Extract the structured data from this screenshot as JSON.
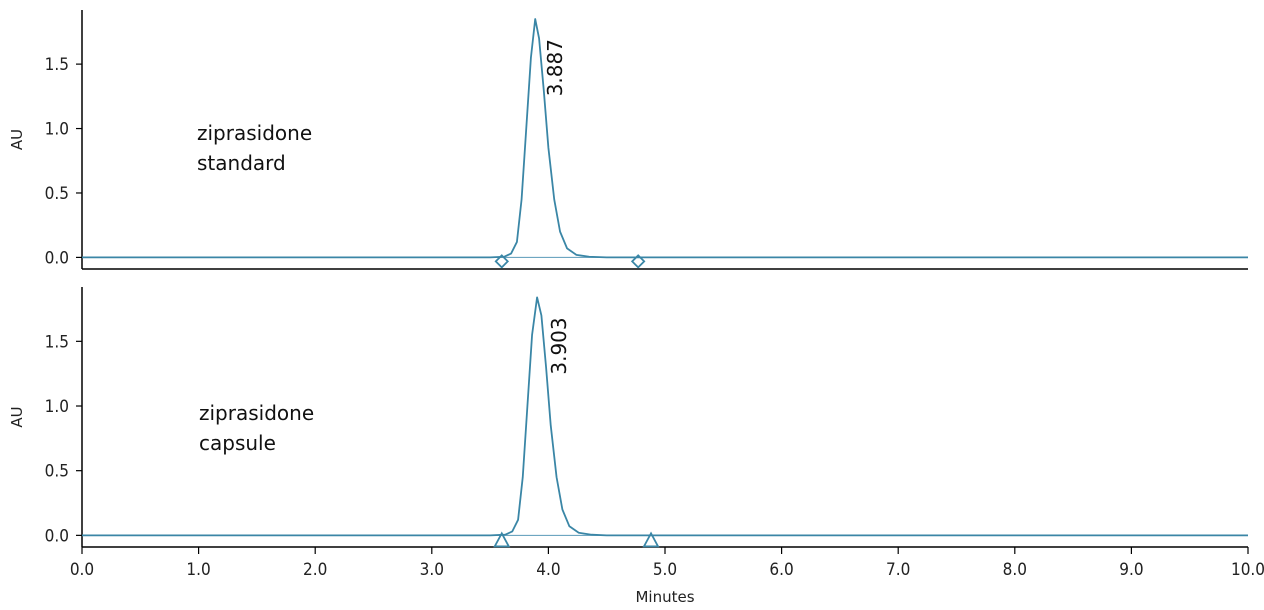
{
  "chart_data": [
    {
      "type": "line",
      "title": "",
      "ylabel": "AU",
      "xlabel": "",
      "xlim": [
        0.0,
        10.0
      ],
      "ylim": [
        -0.09,
        1.92
      ],
      "yticks": [
        0.0,
        0.5,
        1.0,
        1.5
      ],
      "ytick_labels": [
        "0.0",
        "0.5",
        "1.0",
        "1.5"
      ],
      "annotation": [
        "ziprasidone",
        "standard"
      ],
      "peak_label": "3.887",
      "integration_markers": {
        "shape": "diamond",
        "x": [
          3.6,
          4.77
        ]
      },
      "series": [
        {
          "color": "#3a86a6",
          "points": [
            [
              0.0,
              0.0
            ],
            [
              3.5,
              0.0
            ],
            [
              3.62,
              0.005
            ],
            [
              3.68,
              0.03
            ],
            [
              3.73,
              0.12
            ],
            [
              3.77,
              0.45
            ],
            [
              3.81,
              1.0
            ],
            [
              3.85,
              1.55
            ],
            [
              3.887,
              1.85
            ],
            [
              3.92,
              1.7
            ],
            [
              3.96,
              1.3
            ],
            [
              4.0,
              0.85
            ],
            [
              4.05,
              0.45
            ],
            [
              4.1,
              0.2
            ],
            [
              4.16,
              0.07
            ],
            [
              4.24,
              0.02
            ],
            [
              4.35,
              0.005
            ],
            [
              4.5,
              0.0
            ],
            [
              10.0,
              0.0
            ]
          ]
        }
      ]
    },
    {
      "type": "line",
      "title": "",
      "ylabel": "AU",
      "xlabel": "Minutes",
      "xlim": [
        0.0,
        10.0
      ],
      "ylim": [
        -0.09,
        1.92
      ],
      "xticks": [
        0,
        1,
        2,
        3,
        4,
        5,
        6,
        7,
        8,
        9,
        10
      ],
      "xtick_labels": [
        "0.0",
        "1.0",
        "2.0",
        "3.0",
        "4.0",
        "5.0",
        "6.0",
        "7.0",
        "8.0",
        "9.0",
        "10.0"
      ],
      "yticks": [
        0.0,
        0.5,
        1.0,
        1.5
      ],
      "ytick_labels": [
        "0.0",
        "0.5",
        "1.0",
        "1.5"
      ],
      "annotation": [
        "ziprasidone",
        "capsule"
      ],
      "peak_label": "3.903",
      "integration_markers": {
        "shape": "triangle",
        "x": [
          3.6,
          4.88
        ]
      },
      "series": [
        {
          "color": "#3a86a6",
          "points": [
            [
              0.0,
              0.0
            ],
            [
              3.5,
              0.0
            ],
            [
              3.63,
              0.005
            ],
            [
              3.69,
              0.03
            ],
            [
              3.74,
              0.12
            ],
            [
              3.78,
              0.45
            ],
            [
              3.82,
              1.0
            ],
            [
              3.86,
              1.55
            ],
            [
              3.903,
              1.84
            ],
            [
              3.94,
              1.7
            ],
            [
              3.98,
              1.3
            ],
            [
              4.02,
              0.85
            ],
            [
              4.07,
              0.45
            ],
            [
              4.12,
              0.2
            ],
            [
              4.18,
              0.07
            ],
            [
              4.26,
              0.02
            ],
            [
              4.37,
              0.005
            ],
            [
              4.5,
              0.0
            ],
            [
              10.0,
              0.0
            ]
          ]
        }
      ]
    }
  ]
}
